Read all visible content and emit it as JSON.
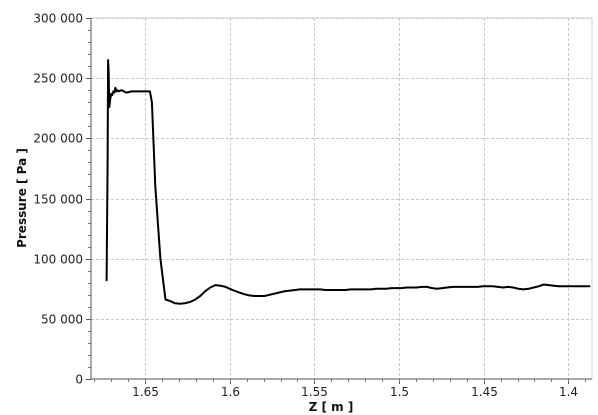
{
  "chart_data": {
    "type": "line",
    "title": "",
    "xlabel": "Z [ m ]",
    "ylabel": "Pressure [ Pa ]",
    "x_reversed": true,
    "xlim": [
      1.682,
      1.386
    ],
    "ylim": [
      0,
      300000
    ],
    "x_ticks": [
      1.65,
      1.6,
      1.55,
      1.5,
      1.45,
      1.4
    ],
    "x_tick_labels": [
      "1.65",
      "1.6",
      "1.55",
      "1.5",
      "1.45",
      "1.4"
    ],
    "y_ticks": [
      0,
      50000,
      100000,
      150000,
      200000,
      250000,
      300000
    ],
    "y_tick_labels": [
      "0",
      "50 000",
      "100 000",
      "150 000",
      "200 000",
      "250 000",
      "300 000"
    ],
    "grid": true,
    "legend": "none",
    "line_color": "#000000",
    "series": [
      {
        "x": [
          1.6728,
          1.6722,
          1.6719,
          1.6716,
          1.6712,
          1.6706,
          1.67,
          1.6694,
          1.6688,
          1.6682,
          1.6676,
          1.667,
          1.6664,
          1.6658,
          1.664,
          1.661,
          1.658,
          1.655,
          1.6505,
          1.6472,
          1.646,
          1.644,
          1.641,
          1.638,
          1.6355,
          1.6325,
          1.6295,
          1.6265,
          1.6235,
          1.6205,
          1.6175,
          1.6145,
          1.6115,
          1.6085,
          1.6055,
          1.6025,
          1.6,
          1.5975,
          1.5945,
          1.5915,
          1.5885,
          1.5855,
          1.5825,
          1.5795,
          1.5765,
          1.5735,
          1.5705,
          1.5675,
          1.5645,
          1.5615,
          1.5585,
          1.5555,
          1.5525,
          1.5495,
          1.5465,
          1.5435,
          1.5405,
          1.5375,
          1.5345,
          1.5315,
          1.5285,
          1.5255,
          1.5225,
          1.5195,
          1.5165,
          1.5135,
          1.5105,
          1.5075,
          1.5045,
          1.5015,
          1.4985,
          1.4955,
          1.4925,
          1.4895,
          1.4865,
          1.4835,
          1.4805,
          1.4775,
          1.4745,
          1.4715,
          1.4685,
          1.4655,
          1.4625,
          1.4595,
          1.4565,
          1.4535,
          1.4505,
          1.4475,
          1.4445,
          1.4415,
          1.4385,
          1.4355,
          1.4325,
          1.4295,
          1.4265,
          1.4235,
          1.4205,
          1.4175,
          1.4145,
          1.4115,
          1.4085,
          1.4055,
          1.4025,
          1.3995,
          1.3965,
          1.3935,
          1.3905,
          1.3875
        ],
        "y": [
          82000,
          180000,
          265000,
          256000,
          226000,
          233000,
          237000,
          236000,
          239000,
          238000,
          242000,
          239000,
          240000,
          239000,
          240000,
          238000,
          239000,
          239000,
          239000,
          239000,
          230000,
          160000,
          100000,
          66000,
          65000,
          63000,
          62500,
          63000,
          64000,
          66000,
          69000,
          73000,
          76000,
          78000,
          77500,
          76500,
          75000,
          73500,
          72000,
          70500,
          69500,
          69000,
          69000,
          69000,
          70000,
          71000,
          72000,
          73000,
          73500,
          74000,
          74500,
          74500,
          74500,
          74500,
          74500,
          74000,
          74000,
          74000,
          74000,
          74000,
          74500,
          74500,
          74500,
          74500,
          74500,
          75000,
          75000,
          75000,
          75500,
          75500,
          75500,
          76000,
          76000,
          76000,
          76500,
          76500,
          75500,
          75000,
          75500,
          76000,
          76500,
          76500,
          76500,
          76500,
          76500,
          76500,
          77000,
          77000,
          77000,
          76500,
          76000,
          76500,
          76000,
          75000,
          74500,
          75000,
          76000,
          77000,
          78500,
          78000,
          77500,
          77000,
          77000,
          77000,
          77000,
          77000,
          77000,
          77000
        ]
      }
    ]
  }
}
